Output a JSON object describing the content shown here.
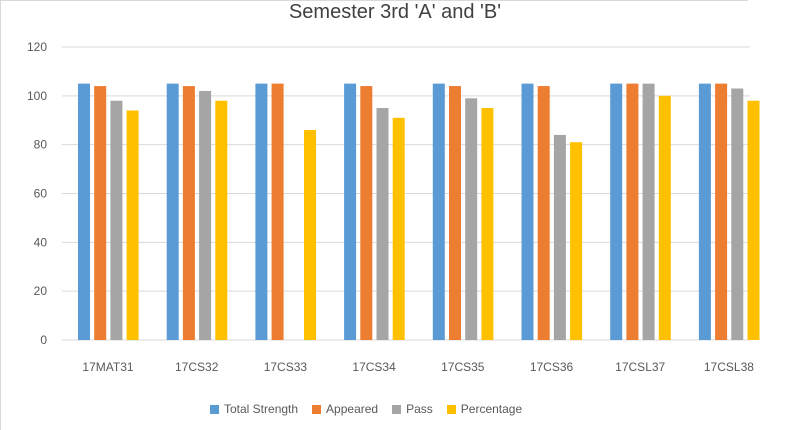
{
  "chart_data": {
    "type": "bar",
    "title": "Semester 3rd 'A' and 'B'",
    "xlabel": "",
    "ylabel": "",
    "ylim": [
      0,
      120
    ],
    "yticks": [
      "0",
      "20",
      "40",
      "60",
      "80",
      "100",
      "120"
    ],
    "grid": true,
    "legend_position": "bottom",
    "categories": [
      "17MAT31",
      "17CS32",
      "17CS33",
      "17CS34",
      "17CS35",
      "17CS36",
      "17CSL37",
      "17CSL38"
    ],
    "series": [
      {
        "name": "Total Strength",
        "color": "#5b9bd5",
        "values": [
          105,
          105,
          105,
          105,
          105,
          105,
          105,
          105
        ]
      },
      {
        "name": "Appeared",
        "color": "#ed7d31",
        "values": [
          104,
          104,
          105,
          104,
          104,
          104,
          105,
          105
        ]
      },
      {
        "name": "Pass",
        "color": "#a5a5a5",
        "values": [
          98,
          102,
          null,
          95,
          99,
          84,
          105,
          103
        ]
      },
      {
        "name": "Percentage",
        "color": "#ffc000",
        "values": [
          94,
          98,
          86,
          91,
          95,
          81,
          100,
          98
        ]
      }
    ]
  }
}
